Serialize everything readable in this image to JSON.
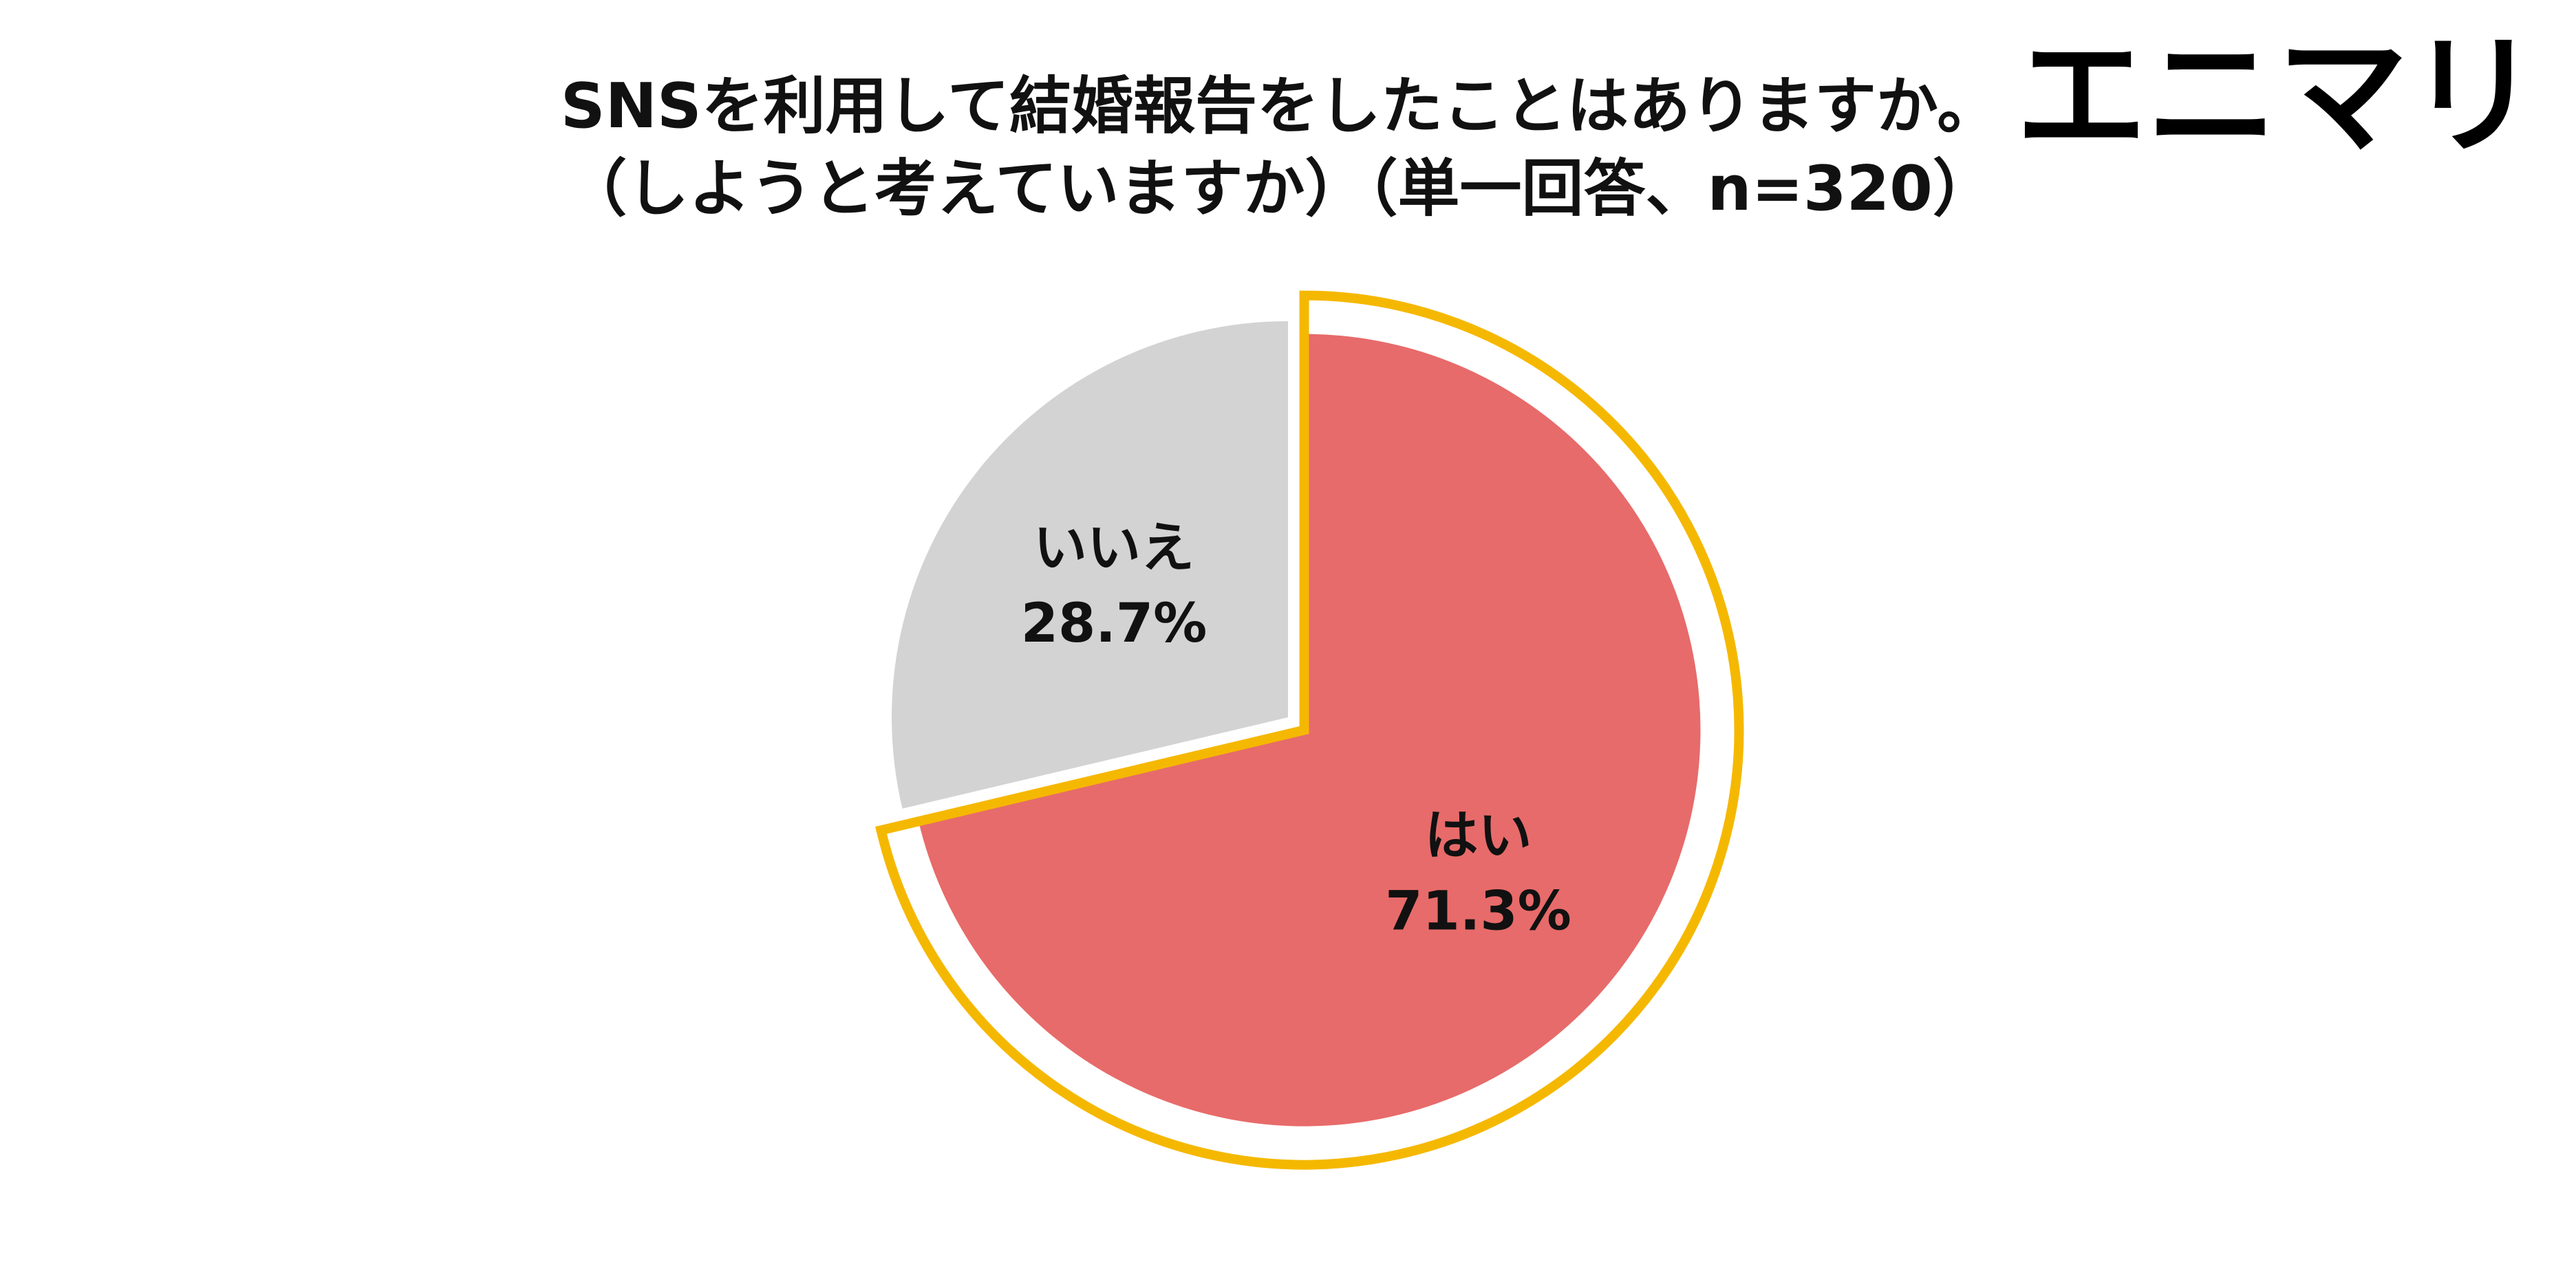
{
  "title": {
    "line1": "SNSを利用して結婚報告をしたことはありますか。",
    "line2": "（しようと考えていますか）（単一回答、n=320）"
  },
  "logo": {
    "text": "エニマリ"
  },
  "colors": {
    "yes": "#E76B6A",
    "no": "#D3D3D3",
    "highlight": "#F5B800",
    "text": "#111111",
    "background": "#FFFFFF"
  },
  "chart_data": {
    "type": "pie",
    "title": "SNSを利用して結婚報告をしたことはありますか。（しようと考えていますか）（単一回答、n=320）",
    "start_angle_deg": 0,
    "direction": "clockwise",
    "highlighted_slice": "はい",
    "slices": [
      {
        "label": "はい",
        "value": 71.3,
        "percent_label": "71.3%"
      },
      {
        "label": "いいえ",
        "value": 28.7,
        "percent_label": "28.7%"
      }
    ]
  }
}
